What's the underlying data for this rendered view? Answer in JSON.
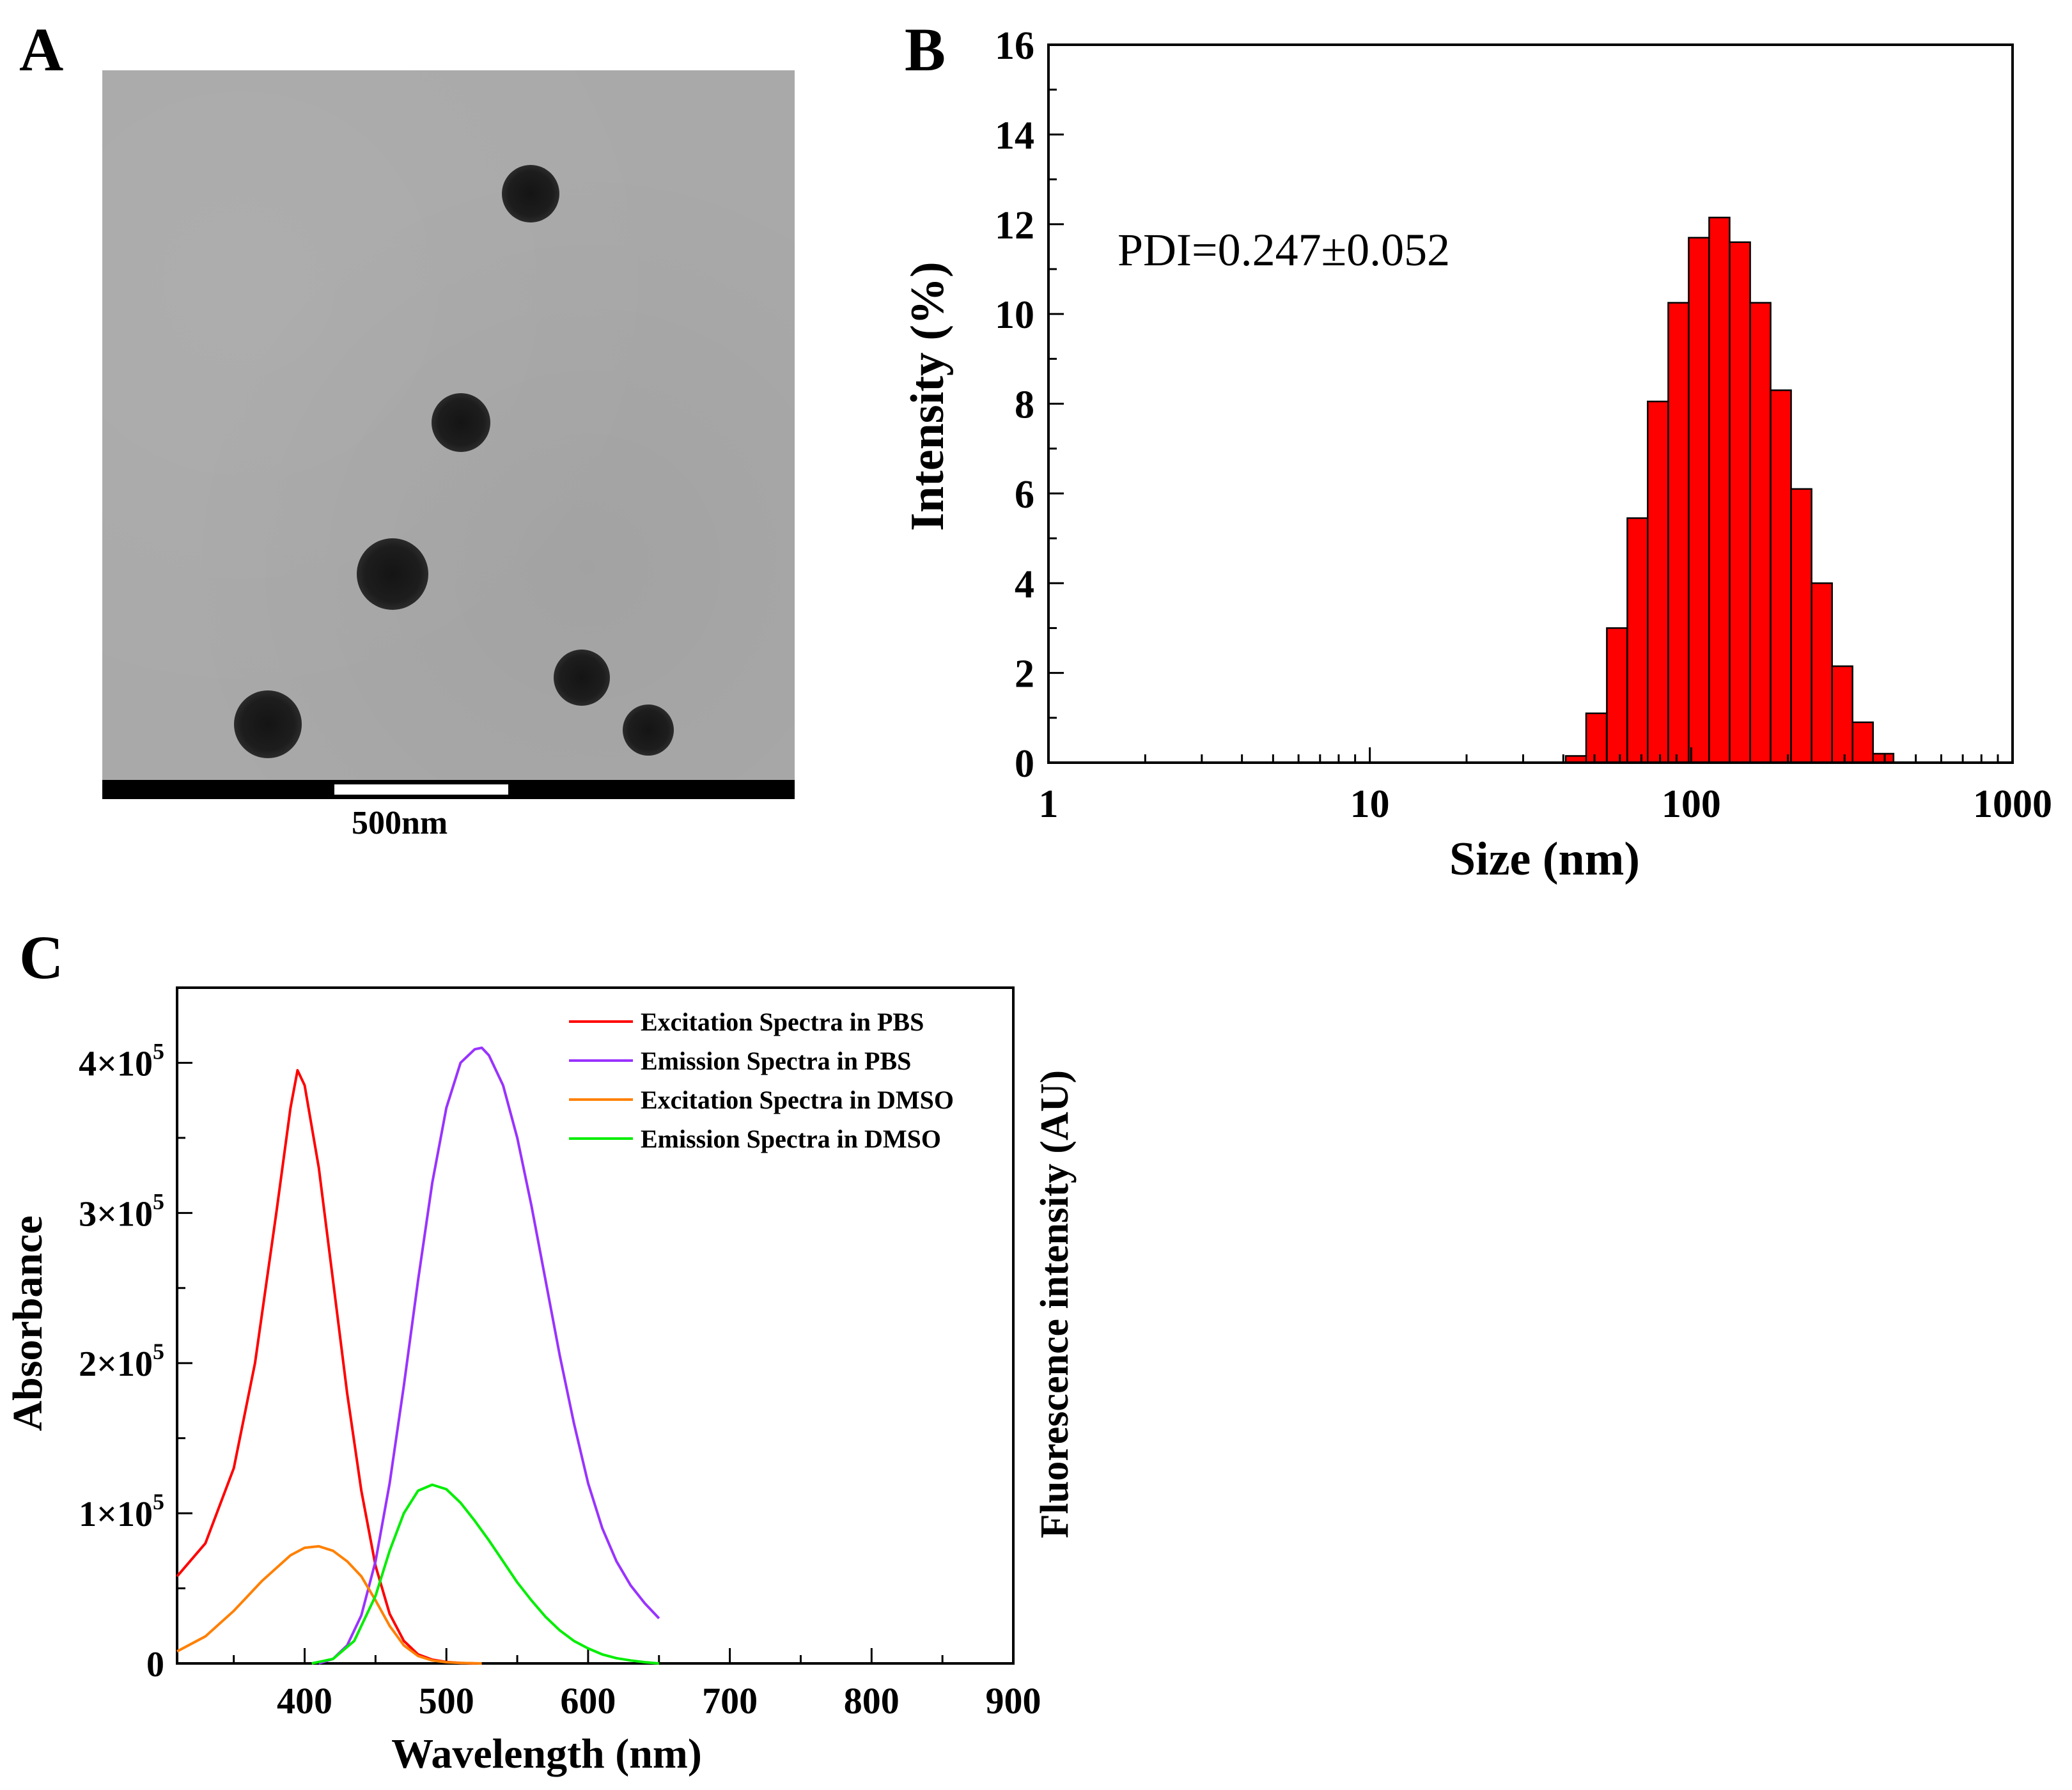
{
  "panels": {
    "a": {
      "letter": "A"
    },
    "b": {
      "letter": "B"
    },
    "c": {
      "letter": "C"
    }
  },
  "tem": {
    "scale_bar_label": "500nm"
  },
  "chart_data": [
    {
      "id": "B",
      "type": "bar",
      "xlabel": "Size (nm)",
      "ylabel": "Intensity (%)",
      "xscale": "log",
      "xlim": [
        1,
        1000
      ],
      "ylim": [
        0,
        16
      ],
      "xticks": [
        "1",
        "10",
        "100",
        "1000"
      ],
      "yticks": [
        "0",
        "2",
        "4",
        "6",
        "8",
        "10",
        "12",
        "14",
        "16"
      ],
      "annotation": "PDI=0.247±0.052",
      "bar_color": "#ff0000",
      "x": [
        43.8,
        50.7,
        58.8,
        68.1,
        78.8,
        91.3,
        105.7,
        122.4,
        141.8,
        164.2,
        190.1,
        220.2,
        255.0,
        295.3,
        342.0,
        396.1
      ],
      "values": [
        0.15,
        1.1,
        3.0,
        5.45,
        8.05,
        10.25,
        11.7,
        12.15,
        11.6,
        10.25,
        8.3,
        6.1,
        4.0,
        2.15,
        0.9,
        0.2
      ]
    },
    {
      "id": "C",
      "type": "line",
      "xlabel": "Wavelength (nm)",
      "ylabel": "Absorbance",
      "ylabel_right": "Fluorescence intensity (AU)",
      "xlim": [
        310,
        900
      ],
      "ylim": [
        0,
        450000
      ],
      "xticks": [
        "400",
        "500",
        "600",
        "700",
        "800",
        "900"
      ],
      "yticks": [
        {
          "value": 0,
          "mantissa": "0",
          "exp": ""
        },
        {
          "value": 100000,
          "mantissa": "1×10",
          "exp": "5"
        },
        {
          "value": 200000,
          "mantissa": "2×10",
          "exp": "5"
        },
        {
          "value": 300000,
          "mantissa": "3×10",
          "exp": "5"
        },
        {
          "value": 400000,
          "mantissa": "4×10",
          "exp": "5"
        }
      ],
      "legend_position": "top-right",
      "series": [
        {
          "name": "Excitation Spectra in PBS",
          "color": "#ff0000",
          "x": [
            310,
            330,
            350,
            365,
            380,
            390,
            395,
            400,
            410,
            420,
            430,
            440,
            450,
            460,
            470,
            480,
            490,
            500,
            510,
            520
          ],
          "y": [
            58000,
            80000,
            130000,
            200000,
            300000,
            370000,
            395000,
            385000,
            330000,
            255000,
            180000,
            115000,
            65000,
            33000,
            15000,
            6000,
            2500,
            1000,
            300,
            0
          ]
        },
        {
          "name": "Emission Spectra in PBS",
          "color": "#9933ff",
          "x": [
            410,
            420,
            430,
            440,
            450,
            460,
            470,
            480,
            490,
            500,
            510,
            520,
            525,
            530,
            540,
            550,
            560,
            570,
            580,
            590,
            600,
            610,
            620,
            630,
            640,
            650
          ],
          "y": [
            0,
            3000,
            12000,
            32000,
            68000,
            120000,
            185000,
            255000,
            320000,
            370000,
            400000,
            409000,
            410000,
            405000,
            385000,
            350000,
            305000,
            255000,
            205000,
            160000,
            120000,
            90000,
            68000,
            52000,
            40000,
            30000
          ]
        },
        {
          "name": "Excitation Spectra in DMSO",
          "color": "#ff8000",
          "x": [
            310,
            330,
            350,
            370,
            390,
            400,
            410,
            420,
            430,
            440,
            450,
            460,
            470,
            480,
            490,
            500,
            510,
            520,
            525
          ],
          "y": [
            8000,
            18000,
            35000,
            55000,
            72000,
            77000,
            78000,
            75000,
            68000,
            58000,
            42000,
            25000,
            12000,
            5000,
            2000,
            800,
            300,
            100,
            0
          ]
        },
        {
          "name": "Emission Spectra in DMSO",
          "color": "#00ee00",
          "x": [
            405,
            420,
            435,
            450,
            460,
            470,
            480,
            490,
            500,
            510,
            520,
            530,
            540,
            550,
            560,
            570,
            580,
            590,
            600,
            610,
            620,
            630,
            640,
            650
          ],
          "y": [
            0,
            3000,
            15000,
            45000,
            75000,
            100000,
            115000,
            119000,
            116000,
            107000,
            95000,
            82000,
            68000,
            54000,
            42000,
            31000,
            22000,
            15000,
            10000,
            6000,
            3500,
            2000,
            800,
            0
          ]
        }
      ]
    }
  ]
}
